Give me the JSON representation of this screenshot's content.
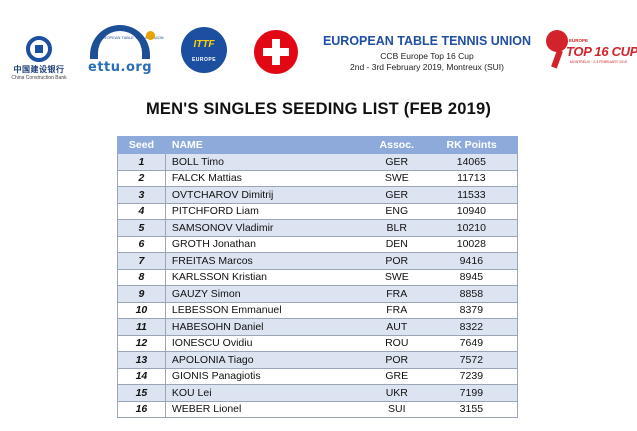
{
  "header": {
    "ccb_logo": {
      "cn": "中国建设银行",
      "en": "China Construction Bank"
    },
    "ettu_logo": {
      "text": "ettu.org",
      "small": "EUROPEAN TABLE TENNIS UNION"
    },
    "europe_logo": {
      "ittf": "ITTF",
      "word": "EUROPE"
    },
    "title_line1": "EUROPEAN TABLE TENNIS UNION",
    "title_line2": "CCB Europe Top 16 Cup",
    "title_line3": "2nd - 3rd February 2019, Montreux (SUI)",
    "top16_logo": {
      "ccb": "CCB EUROPE",
      "main": "TOP 16 CUP",
      "sub": "MONTREUX · 2-3 FEBRUARY 2019"
    }
  },
  "document": {
    "title": "MEN'S SINGLES SEEDING LIST (FEB 2019)"
  },
  "table": {
    "headers": {
      "seed": "Seed",
      "name": "NAME",
      "assoc": "Assoc.",
      "points": "RK Points"
    },
    "rows": [
      {
        "seed": "1",
        "name": "BOLL Timo",
        "assoc": "GER",
        "points": "14065"
      },
      {
        "seed": "2",
        "name": "FALCK Mattias",
        "assoc": "SWE",
        "points": "11713"
      },
      {
        "seed": "3",
        "name": "OVTCHAROV Dimitrij",
        "assoc": "GER",
        "points": "11533"
      },
      {
        "seed": "4",
        "name": "PITCHFORD Liam",
        "assoc": "ENG",
        "points": "10940"
      },
      {
        "seed": "5",
        "name": "SAMSONOV Vladimir",
        "assoc": "BLR",
        "points": "10210"
      },
      {
        "seed": "6",
        "name": "GROTH Jonathan",
        "assoc": "DEN",
        "points": "10028"
      },
      {
        "seed": "7",
        "name": "FREITAS Marcos",
        "assoc": "POR",
        "points": "9416"
      },
      {
        "seed": "8",
        "name": "KARLSSON Kristian",
        "assoc": "SWE",
        "points": "8945"
      },
      {
        "seed": "9",
        "name": "GAUZY Simon",
        "assoc": "FRA",
        "points": "8858"
      },
      {
        "seed": "10",
        "name": "LEBESSON Emmanuel",
        "assoc": "FRA",
        "points": "8379"
      },
      {
        "seed": "11",
        "name": "HABESOHN Daniel",
        "assoc": "AUT",
        "points": "8322"
      },
      {
        "seed": "12",
        "name": "IONESCU Ovidiu",
        "assoc": "ROU",
        "points": "7649"
      },
      {
        "seed": "13",
        "name": "APOLONIA Tiago",
        "assoc": "POR",
        "points": "7572"
      },
      {
        "seed": "14",
        "name": "GIONIS Panagiotis",
        "assoc": "GRE",
        "points": "7239"
      },
      {
        "seed": "15",
        "name": "KOU Lei",
        "assoc": "UKR",
        "points": "7199"
      },
      {
        "seed": "16",
        "name": "WEBER Lionel",
        "assoc": "SUI",
        "points": "3155"
      }
    ]
  },
  "colors": {
    "header_fill": "#8eaadb",
    "band_fill": "#dce4f1",
    "ettu_blue": "#1e4fa0",
    "swiss_red": "#e30613",
    "top16_red": "#d2232a"
  }
}
